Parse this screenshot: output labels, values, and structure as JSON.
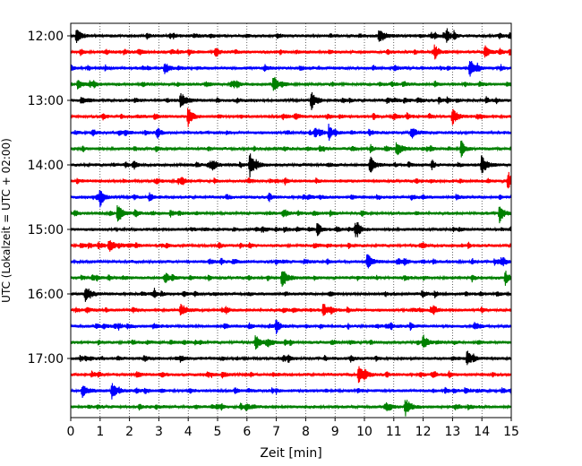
{
  "chart_data": {
    "type": "line",
    "title": "",
    "xlabel": "Zeit  [min]",
    "ylabel": "UTC (Lokalzeit = UTC + 02:00)",
    "xlim": [
      0,
      15
    ],
    "x_ticks": [
      0,
      1,
      2,
      3,
      4,
      5,
      6,
      7,
      8,
      9,
      10,
      11,
      12,
      13,
      14,
      15
    ],
    "x_tick_labels": [
      "0",
      "1",
      "2",
      "3",
      "4",
      "5",
      "6",
      "7",
      "8",
      "9",
      "10",
      "11",
      "12",
      "13",
      "14",
      "15"
    ],
    "y_tick_labels": [
      "12:00",
      "13:00",
      "14:00",
      "15:00",
      "16:00",
      "17:00"
    ],
    "grid": "vertical dotted at each minute",
    "trace_colors": [
      "#000000",
      "#ff0000",
      "#0000ff",
      "#008000"
    ],
    "trace_interval_minutes": 15,
    "traces": [
      {
        "start": "12:00",
        "color": "#000000",
        "events_min": [
          0.2,
          10.5,
          12.8
        ]
      },
      {
        "start": "12:15",
        "color": "#ff0000",
        "events_min": [
          12.4,
          14.1
        ]
      },
      {
        "start": "12:30",
        "color": "#0000ff",
        "events_min": [
          3.2,
          13.6
        ]
      },
      {
        "start": "12:45",
        "color": "#008000",
        "events_min": [
          0.25,
          6.9
        ]
      },
      {
        "start": "13:00",
        "color": "#000000",
        "events_min": [
          3.75,
          8.2
        ]
      },
      {
        "start": "13:15",
        "color": "#ff0000",
        "events_min": [
          4.0,
          13.0
        ]
      },
      {
        "start": "13:30",
        "color": "#0000ff",
        "events_min": [
          8.8,
          11.6
        ]
      },
      {
        "start": "13:45",
        "color": "#008000",
        "events_min": [
          11.1,
          13.3
        ]
      },
      {
        "start": "14:00",
        "color": "#000000",
        "events_min": [
          6.1,
          10.2,
          14.0
        ]
      },
      {
        "start": "14:15",
        "color": "#ff0000",
        "events_min": [
          14.9
        ]
      },
      {
        "start": "14:30",
        "color": "#0000ff",
        "events_min": [
          1.0
        ]
      },
      {
        "start": "14:45",
        "color": "#008000",
        "events_min": [
          1.6,
          14.6
        ]
      },
      {
        "start": "15:00",
        "color": "#000000",
        "events_min": [
          9.7,
          8.4
        ]
      },
      {
        "start": "15:15",
        "color": "#ff0000",
        "events_min": [
          1.3
        ]
      },
      {
        "start": "15:30",
        "color": "#0000ff",
        "events_min": [
          10.1
        ]
      },
      {
        "start": "15:45",
        "color": "#008000",
        "events_min": [
          7.2,
          14.8
        ]
      },
      {
        "start": "16:00",
        "color": "#000000",
        "events_min": [
          0.5
        ]
      },
      {
        "start": "16:15",
        "color": "#ff0000",
        "events_min": [
          3.75,
          8.6
        ]
      },
      {
        "start": "16:30",
        "color": "#0000ff",
        "events_min": [
          7.0
        ]
      },
      {
        "start": "16:45",
        "color": "#008000",
        "events_min": [
          6.3,
          12.0
        ]
      },
      {
        "start": "17:00",
        "color": "#000000",
        "events_min": [
          13.5
        ]
      },
      {
        "start": "17:15",
        "color": "#ff0000",
        "events_min": [
          9.8
        ]
      },
      {
        "start": "17:30",
        "color": "#0000ff",
        "events_min": [
          0.4,
          1.4
        ]
      },
      {
        "start": "17:45",
        "color": "#008000",
        "events_min": [
          11.4
        ]
      }
    ]
  }
}
